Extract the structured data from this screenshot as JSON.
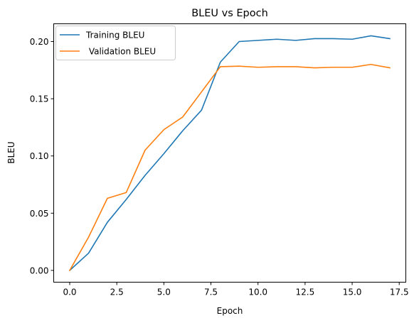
{
  "chart_data": {
    "type": "line",
    "title": "BLEU vs Epoch",
    "xlabel": "Epoch",
    "ylabel": "BLEU",
    "xlim": [
      -0.85,
      17.85
    ],
    "ylim": [
      -0.0103,
      0.2155
    ],
    "xticks": [
      0.0,
      2.5,
      5.0,
      7.5,
      10.0,
      12.5,
      15.0,
      17.5
    ],
    "xtick_labels": [
      "0.0",
      "2.5",
      "5.0",
      "7.5",
      "10.0",
      "12.5",
      "15.0",
      "17.5"
    ],
    "yticks": [
      0.0,
      0.05,
      0.1,
      0.15,
      0.2
    ],
    "ytick_labels": [
      "0.00",
      "0.05",
      "0.10",
      "0.15",
      "0.20"
    ],
    "grid": false,
    "legend_position": "top-left",
    "x": [
      0,
      1,
      2,
      3,
      4,
      5,
      6,
      7,
      8,
      9,
      10,
      11,
      12,
      13,
      14,
      15,
      16,
      17
    ],
    "series": [
      {
        "name": "Training BLEU",
        "color": "#1f77b4",
        "values": [
          0.0,
          0.015,
          0.042,
          0.062,
          0.083,
          0.102,
          0.122,
          0.14,
          0.182,
          0.2,
          0.201,
          0.202,
          0.201,
          0.2025,
          0.2025,
          0.202,
          0.205,
          0.2025
        ]
      },
      {
        "name": " Validation BLEU",
        "color": "#ff7f0e",
        "values": [
          0.0,
          0.029,
          0.063,
          0.068,
          0.105,
          0.123,
          0.134,
          0.156,
          0.178,
          0.1785,
          0.1775,
          0.178,
          0.178,
          0.177,
          0.1775,
          0.1775,
          0.18,
          0.177
        ]
      }
    ]
  }
}
